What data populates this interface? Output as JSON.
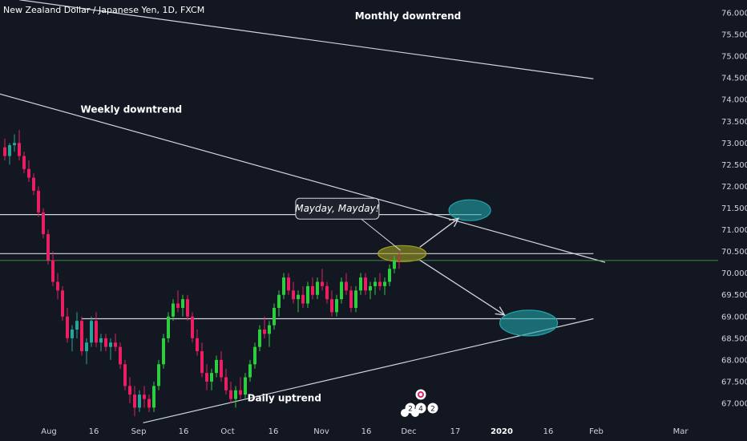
{
  "header": {
    "symbol_title": "New Zealand Dollar / Japanese Yen, 1D, FXCM"
  },
  "colors": {
    "background": "#131722",
    "up_candle": "#26a69a",
    "up_candle_bright": "#2ecc40",
    "down_candle": "#e91e63",
    "price_line": "#4caf50",
    "trend_line": "#d1d4dc",
    "teal_zone": "#20a5a8",
    "olive_zone": "#9e9d24"
  },
  "icons": [
    "event-flag-icon"
  ],
  "chart_data": {
    "type": "candlestick",
    "title": "New Zealand Dollar / Japanese Yen, 1D, FXCM",
    "ylim": [
      66.6,
      76.3
    ],
    "y_ticks": [
      "76.000",
      "75.500",
      "75.000",
      "74.500",
      "74.000",
      "73.500",
      "73.000",
      "72.500",
      "72.000",
      "71.500",
      "71.000",
      "70.500",
      "70.000",
      "69.500",
      "69.000",
      "68.500",
      "68.000",
      "67.500",
      "67.000"
    ],
    "x_ticks": [
      {
        "label": "Aug",
        "bold": false
      },
      {
        "label": "16",
        "bold": false
      },
      {
        "label": "Sep",
        "bold": false
      },
      {
        "label": "16",
        "bold": false
      },
      {
        "label": "Oct",
        "bold": false
      },
      {
        "label": "16",
        "bold": false
      },
      {
        "label": "Nov",
        "bold": false
      },
      {
        "label": "16",
        "bold": false
      },
      {
        "label": "Dec",
        "bold": false
      },
      {
        "label": "17",
        "bold": false
      },
      {
        "label": "2020",
        "bold": true
      },
      {
        "label": "16",
        "bold": false
      },
      {
        "label": "Feb",
        "bold": false
      },
      {
        "label": "Mar",
        "bold": false
      }
    ],
    "last_price": "70.292",
    "ohlc": [
      [
        72.9,
        73.1,
        72.6,
        72.7
      ],
      [
        72.7,
        73.0,
        72.5,
        72.95
      ],
      [
        72.95,
        73.2,
        72.8,
        73.0
      ],
      [
        73.0,
        73.3,
        72.6,
        72.7
      ],
      [
        72.7,
        72.8,
        72.3,
        72.4
      ],
      [
        72.4,
        72.6,
        72.1,
        72.2
      ],
      [
        72.2,
        72.3,
        71.8,
        71.9
      ],
      [
        71.9,
        72.0,
        71.3,
        71.4
      ],
      [
        71.4,
        71.5,
        70.8,
        70.9
      ],
      [
        70.9,
        71.0,
        70.2,
        70.3
      ],
      [
        70.3,
        70.5,
        69.7,
        69.8
      ],
      [
        69.8,
        70.0,
        69.4,
        69.6
      ],
      [
        69.6,
        69.7,
        68.9,
        69.0
      ],
      [
        69.0,
        69.2,
        68.4,
        68.5
      ],
      [
        68.5,
        68.8,
        68.2,
        68.7
      ],
      [
        68.7,
        69.1,
        68.5,
        68.9
      ],
      [
        68.9,
        69.0,
        68.1,
        68.2
      ],
      [
        68.2,
        68.5,
        67.9,
        68.4
      ],
      [
        68.4,
        69.0,
        68.3,
        68.9
      ],
      [
        68.9,
        69.1,
        68.3,
        68.4
      ],
      [
        68.4,
        68.6,
        68.2,
        68.5
      ],
      [
        68.5,
        68.6,
        68.2,
        68.3
      ],
      [
        68.3,
        68.5,
        68.0,
        68.4
      ],
      [
        68.4,
        68.6,
        68.2,
        68.3
      ],
      [
        68.3,
        68.4,
        67.8,
        67.9
      ],
      [
        67.9,
        68.0,
        67.3,
        67.4
      ],
      [
        67.4,
        67.6,
        67.0,
        67.2
      ],
      [
        67.2,
        67.4,
        66.7,
        66.9
      ],
      [
        66.9,
        67.3,
        66.8,
        67.2
      ],
      [
        67.2,
        67.4,
        66.9,
        67.1
      ],
      [
        67.1,
        67.2,
        66.8,
        66.9
      ],
      [
        66.9,
        67.5,
        66.8,
        67.4
      ],
      [
        67.4,
        68.0,
        67.3,
        67.9
      ],
      [
        67.9,
        68.6,
        67.8,
        68.5
      ],
      [
        68.5,
        69.1,
        68.4,
        69.0
      ],
      [
        69.0,
        69.4,
        68.9,
        69.3
      ],
      [
        69.3,
        69.6,
        69.1,
        69.2
      ],
      [
        69.2,
        69.5,
        69.0,
        69.4
      ],
      [
        69.4,
        69.5,
        68.9,
        69.0
      ],
      [
        69.0,
        69.1,
        68.4,
        68.5
      ],
      [
        68.5,
        68.7,
        68.1,
        68.2
      ],
      [
        68.2,
        68.4,
        67.6,
        67.7
      ],
      [
        67.7,
        67.9,
        67.3,
        67.5
      ],
      [
        67.5,
        67.8,
        67.3,
        67.7
      ],
      [
        67.7,
        68.1,
        67.6,
        68.0
      ],
      [
        68.0,
        68.2,
        67.5,
        67.6
      ],
      [
        67.6,
        67.8,
        67.2,
        67.3
      ],
      [
        67.3,
        67.5,
        67.0,
        67.1
      ],
      [
        67.1,
        67.4,
        66.9,
        67.3
      ],
      [
        67.3,
        67.6,
        67.1,
        67.2
      ],
      [
        67.2,
        67.7,
        67.1,
        67.6
      ],
      [
        67.6,
        68.0,
        67.5,
        67.9
      ],
      [
        67.9,
        68.4,
        67.8,
        68.3
      ],
      [
        68.3,
        68.8,
        68.2,
        68.7
      ],
      [
        68.7,
        69.0,
        68.5,
        68.6
      ],
      [
        68.6,
        68.9,
        68.3,
        68.8
      ],
      [
        68.8,
        69.3,
        68.7,
        69.2
      ],
      [
        69.2,
        69.6,
        69.0,
        69.5
      ],
      [
        69.5,
        70.0,
        69.4,
        69.9
      ],
      [
        69.9,
        70.0,
        69.5,
        69.6
      ],
      [
        69.6,
        69.8,
        69.3,
        69.4
      ],
      [
        69.4,
        69.6,
        69.1,
        69.5
      ],
      [
        69.5,
        69.7,
        69.2,
        69.3
      ],
      [
        69.3,
        69.8,
        69.2,
        69.7
      ],
      [
        69.7,
        69.9,
        69.4,
        69.5
      ],
      [
        69.5,
        69.9,
        69.4,
        69.8
      ],
      [
        69.8,
        70.1,
        69.6,
        69.7
      ],
      [
        69.7,
        69.8,
        69.3,
        69.4
      ],
      [
        69.4,
        69.6,
        69.0,
        69.1
      ],
      [
        69.1,
        69.5,
        69.0,
        69.4
      ],
      [
        69.4,
        69.9,
        69.3,
        69.8
      ],
      [
        69.8,
        70.0,
        69.5,
        69.6
      ],
      [
        69.6,
        69.7,
        69.1,
        69.2
      ],
      [
        69.2,
        69.7,
        69.1,
        69.6
      ],
      [
        69.6,
        70.0,
        69.5,
        69.9
      ],
      [
        69.9,
        70.0,
        69.5,
        69.6
      ],
      [
        69.6,
        69.8,
        69.4,
        69.7
      ],
      [
        69.7,
        69.9,
        69.5,
        69.8
      ],
      [
        69.8,
        70.0,
        69.6,
        69.7
      ],
      [
        69.7,
        69.9,
        69.5,
        69.8
      ],
      [
        69.8,
        70.2,
        69.7,
        70.1
      ],
      [
        70.1,
        70.4,
        70.0,
        70.3
      ],
      [
        70.3,
        70.5,
        70.1,
        70.29
      ]
    ],
    "lines": [
      {
        "kind": "trendline",
        "from": {
          "date": "2019-07-22",
          "price": 76.3
        },
        "to": {
          "date": "2020-02-02",
          "price": 74.48
        }
      },
      {
        "kind": "trendline",
        "from": {
          "date": "2019-07-01",
          "price": 74.4
        },
        "to": {
          "date": "2020-02-06",
          "price": 70.25
        }
      },
      {
        "kind": "horizontal",
        "price": 71.35,
        "from": "2019-07-01",
        "to": "2019-12-26"
      },
      {
        "kind": "horizontal",
        "price": 70.45,
        "from": "2019-07-01",
        "to": "2020-02-02"
      },
      {
        "kind": "horizontal",
        "price": 68.95,
        "from": "2019-08-12",
        "to": "2020-01-27"
      },
      {
        "kind": "trendline",
        "from": {
          "date": "2019-09-02",
          "price": 66.55
        },
        "to": {
          "date": "2020-02-02",
          "price": 68.95
        }
      }
    ],
    "zones": [
      {
        "color": "teal",
        "center_date": "2019-12-22",
        "price": 71.45
      },
      {
        "color": "olive",
        "center_date": "2019-11-29",
        "price": 70.45
      },
      {
        "color": "teal",
        "center_date": "2020-01-11",
        "price": 68.85
      }
    ],
    "annotations": [
      {
        "text": "Monthly downtrend",
        "date": "2019-12-01",
        "price": 75.85
      },
      {
        "text": "Weekly downtrend",
        "date": "2019-08-29",
        "price": 73.7
      },
      {
        "text": "Mayday, Mayday!",
        "date": "2019-11-07",
        "price": 71.45
      },
      {
        "text": "Daily uptrend",
        "date": "2019-10-20",
        "price": 67.05
      }
    ],
    "event_flags": [
      "2",
      "4",
      "2"
    ]
  }
}
